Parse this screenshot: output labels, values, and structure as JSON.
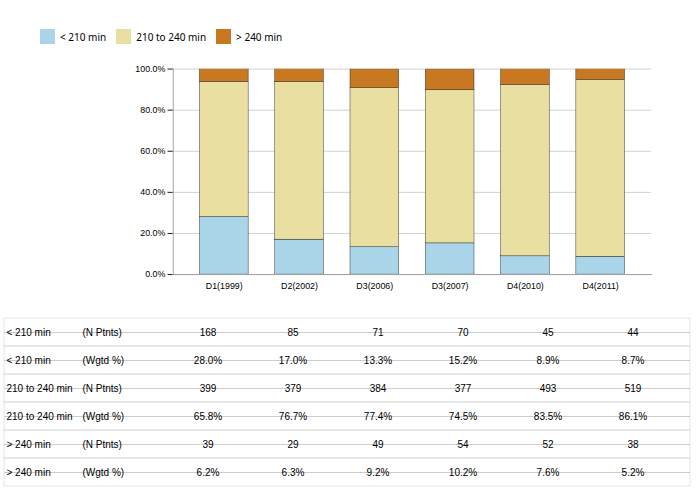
{
  "chart_data": {
    "type": "bar",
    "categories": [
      "D1(1999)",
      "D2(2002)",
      "D3(2006)",
      "D3(2007)",
      "D4(2010)",
      "D4(2011)"
    ],
    "series": [
      {
        "name": "< 210 min",
        "color": "#aad4e8",
        "values": [
          28.0,
          17.0,
          13.3,
          15.2,
          8.9,
          8.7
        ]
      },
      {
        "name": "210 to 240 min",
        "color": "#e8dfa0",
        "values": [
          65.8,
          76.7,
          77.4,
          74.5,
          83.5,
          86.1
        ]
      },
      {
        "name": "> 240 min",
        "color": "#c87820",
        "values": [
          6.2,
          6.3,
          9.2,
          10.2,
          7.6,
          5.2
        ]
      }
    ],
    "stacked": true,
    "ylim": [
      0,
      100
    ],
    "yticks": [
      {
        "value": 0,
        "label": "0.0%"
      },
      {
        "value": 20,
        "label": "20.0%"
      },
      {
        "value": 40,
        "label": "40.0%"
      },
      {
        "value": 60,
        "label": "60.0%"
      },
      {
        "value": 80,
        "label": "80.0%"
      },
      {
        "value": 100,
        "label": "100.0%"
      }
    ],
    "grid": true,
    "legend": "top",
    "table": [
      {
        "label": "< 210 min",
        "sublabel": "(N Ptnts)",
        "values": [
          168,
          85,
          71,
          70,
          45,
          44
        ]
      },
      {
        "label": "< 210 min",
        "sublabel": "(Wgtd %)",
        "values": [
          28.0,
          17.0,
          13.3,
          15.2,
          8.9,
          8.7
        ],
        "value_labels": [
          "28.0%",
          "17.0%",
          "13.3%",
          "15.2%",
          "8.9%",
          "8.7%"
        ]
      },
      {
        "label": "210 to 240 min",
        "sublabel": "(N Ptnts)",
        "values": [
          399,
          379,
          384,
          377,
          493,
          519
        ]
      },
      {
        "label": "210 to 240 min",
        "sublabel": "(Wgtd %)",
        "values": [
          65.8,
          76.7,
          77.4,
          74.5,
          83.5,
          86.1
        ],
        "value_labels": [
          "65.8%",
          "76.7%",
          "77.4%",
          "74.5%",
          "83.5%",
          "86.1%"
        ]
      },
      {
        "label": "> 240 min",
        "sublabel": "(N Ptnts)",
        "values": [
          39,
          29,
          49,
          54,
          52,
          38
        ]
      },
      {
        "label": "> 240 min",
        "sublabel": "(Wgtd %)",
        "values": [
          6.2,
          6.3,
          9.2,
          10.2,
          7.6,
          5.2
        ],
        "value_labels": [
          "6.2%",
          "6.3%",
          "9.2%",
          "10.2%",
          "7.6%",
          "5.2%"
        ]
      }
    ]
  }
}
